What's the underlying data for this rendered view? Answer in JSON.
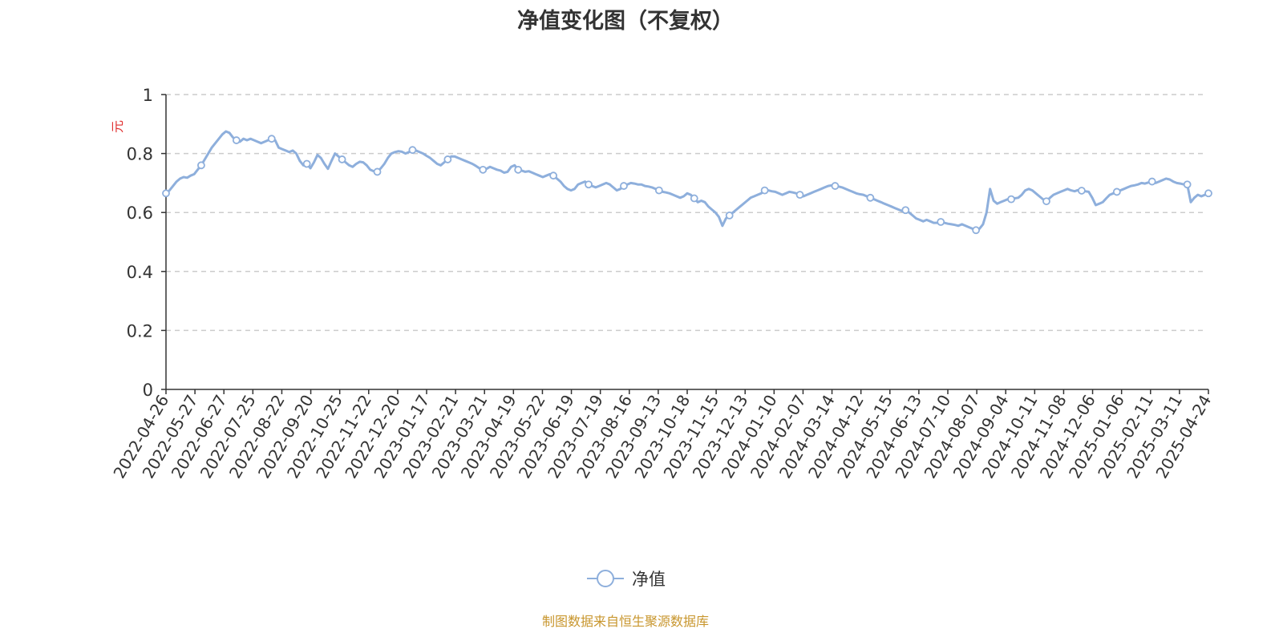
{
  "title": "净值变化图（不复权）",
  "source_note": "制图数据来自恒生聚源数据库",
  "chart_data": {
    "type": "line",
    "ylabel": "元",
    "ylim": [
      0,
      1
    ],
    "yticks": [
      "0",
      "0.2",
      "0.4",
      "0.6",
      "0.8",
      "1"
    ],
    "x_tick_labels": [
      "2022-04-26",
      "2022-05-27",
      "2022-06-27",
      "2022-07-25",
      "2022-08-22",
      "2022-09-20",
      "2022-10-25",
      "2022-11-22",
      "2022-12-20",
      "2023-01-17",
      "2023-02-21",
      "2023-03-21",
      "2023-04-19",
      "2023-05-22",
      "2023-06-19",
      "2023-07-19",
      "2023-08-16",
      "2023-09-13",
      "2023-10-18",
      "2023-11-15",
      "2023-12-13",
      "2024-01-10",
      "2024-02-07",
      "2024-03-14",
      "2024-04-12",
      "2024-05-15",
      "2024-06-13",
      "2024-07-10",
      "2024-08-07",
      "2024-09-04",
      "2024-10-11",
      "2024-11-08",
      "2024-12-06",
      "2025-01-06",
      "2025-02-11",
      "2025-03-11",
      "2025-04-24"
    ],
    "grid": true,
    "legend_position": "bottom",
    "series": [
      {
        "name": "净值",
        "color": "#8eafdc",
        "values": [
          0.665,
          0.675,
          0.69,
          0.705,
          0.715,
          0.72,
          0.718,
          0.725,
          0.73,
          0.745,
          0.76,
          0.78,
          0.8,
          0.82,
          0.835,
          0.85,
          0.865,
          0.875,
          0.87,
          0.855,
          0.845,
          0.84,
          0.85,
          0.845,
          0.85,
          0.845,
          0.84,
          0.835,
          0.84,
          0.845,
          0.85,
          0.845,
          0.82,
          0.815,
          0.81,
          0.805,
          0.81,
          0.8,
          0.775,
          0.76,
          0.765,
          0.75,
          0.77,
          0.795,
          0.785,
          0.765,
          0.748,
          0.775,
          0.8,
          0.79,
          0.78,
          0.77,
          0.76,
          0.755,
          0.765,
          0.772,
          0.77,
          0.76,
          0.745,
          0.74,
          0.738,
          0.75,
          0.765,
          0.785,
          0.8,
          0.805,
          0.808,
          0.806,
          0.8,
          0.805,
          0.812,
          0.81,
          0.805,
          0.8,
          0.792,
          0.785,
          0.775,
          0.765,
          0.76,
          0.77,
          0.78,
          0.79,
          0.79,
          0.785,
          0.78,
          0.775,
          0.77,
          0.765,
          0.758,
          0.75,
          0.745,
          0.748,
          0.755,
          0.75,
          0.745,
          0.742,
          0.735,
          0.738,
          0.755,
          0.76,
          0.745,
          0.742,
          0.738,
          0.74,
          0.735,
          0.73,
          0.725,
          0.72,
          0.725,
          0.73,
          0.725,
          0.715,
          0.705,
          0.69,
          0.68,
          0.675,
          0.68,
          0.695,
          0.7,
          0.705,
          0.695,
          0.69,
          0.685,
          0.69,
          0.695,
          0.7,
          0.695,
          0.685,
          0.675,
          0.68,
          0.69,
          0.695,
          0.7,
          0.698,
          0.695,
          0.695,
          0.69,
          0.688,
          0.685,
          0.68,
          0.675,
          0.67,
          0.668,
          0.665,
          0.66,
          0.655,
          0.65,
          0.655,
          0.665,
          0.66,
          0.648,
          0.635,
          0.64,
          0.635,
          0.62,
          0.61,
          0.6,
          0.585,
          0.555,
          0.58,
          0.59,
          0.6,
          0.61,
          0.62,
          0.63,
          0.64,
          0.65,
          0.655,
          0.66,
          0.665,
          0.675,
          0.675,
          0.672,
          0.67,
          0.665,
          0.66,
          0.665,
          0.67,
          0.668,
          0.665,
          0.66,
          0.655,
          0.66,
          0.665,
          0.67,
          0.675,
          0.68,
          0.685,
          0.69,
          0.692,
          0.69,
          0.688,
          0.685,
          0.68,
          0.675,
          0.67,
          0.665,
          0.662,
          0.66,
          0.655,
          0.65,
          0.645,
          0.64,
          0.635,
          0.63,
          0.625,
          0.62,
          0.615,
          0.61,
          0.605,
          0.608,
          0.6,
          0.59,
          0.58,
          0.575,
          0.57,
          0.575,
          0.57,
          0.565,
          0.565,
          0.568,
          0.565,
          0.562,
          0.56,
          0.558,
          0.555,
          0.56,
          0.555,
          0.55,
          0.545,
          0.54,
          0.545,
          0.56,
          0.6,
          0.68,
          0.64,
          0.63,
          0.635,
          0.64,
          0.645,
          0.645,
          0.648,
          0.65,
          0.66,
          0.675,
          0.68,
          0.675,
          0.665,
          0.655,
          0.645,
          0.638,
          0.65,
          0.66,
          0.665,
          0.67,
          0.675,
          0.68,
          0.675,
          0.672,
          0.676,
          0.674,
          0.672,
          0.67,
          0.65,
          0.625,
          0.63,
          0.635,
          0.648,
          0.66,
          0.665,
          0.67,
          0.675,
          0.68,
          0.685,
          0.69,
          0.692,
          0.695,
          0.7,
          0.698,
          0.702,
          0.705,
          0.7,
          0.705,
          0.71,
          0.715,
          0.712,
          0.705,
          0.7,
          0.698,
          0.695,
          0.695,
          0.635,
          0.65,
          0.66,
          0.655,
          0.66,
          0.665
        ]
      }
    ]
  }
}
